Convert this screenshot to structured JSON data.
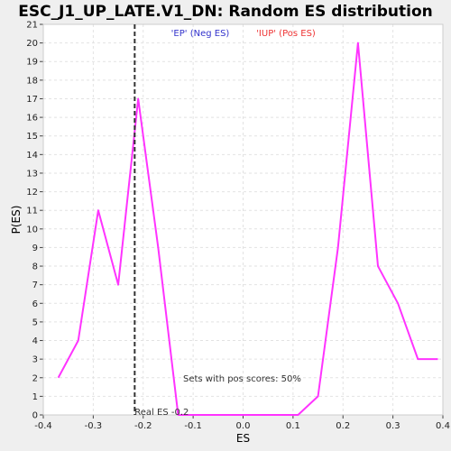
{
  "chart_data": {
    "type": "line",
    "title": "ESC_J1_UP_LATE.V1_DN: Random ES distribution",
    "xlabel": "ES",
    "ylabel": "P(ES)",
    "xlim": [
      -0.4,
      0.4
    ],
    "ylim": [
      0,
      21
    ],
    "xticks": [
      "-0.4",
      "-0.3",
      "-0.2",
      "-0.1",
      "0.0",
      "0.1",
      "0.2",
      "0.3",
      "0.4"
    ],
    "yticks": [
      "0",
      "1",
      "2",
      "3",
      "4",
      "5",
      "6",
      "7",
      "8",
      "9",
      "10",
      "11",
      "12",
      "13",
      "14",
      "15",
      "16",
      "17",
      "18",
      "19",
      "20",
      "21"
    ],
    "grid": true,
    "legend": [
      {
        "label": "'EP' (Neg ES)",
        "color": "#3333cc"
      },
      {
        "label": "'IUP' (Pos ES)",
        "color": "#ee3333"
      }
    ],
    "series": [
      {
        "color": "#ff33ff",
        "x": [
          -0.37,
          -0.33,
          -0.29,
          -0.25,
          -0.21,
          -0.17,
          -0.13,
          -0.09,
          -0.05,
          -0.01,
          0.03,
          0.07,
          0.11,
          0.15,
          0.19,
          0.23,
          0.27,
          0.31,
          0.35,
          0.39
        ],
        "y": [
          2,
          4,
          11,
          7,
          17,
          9,
          0,
          0,
          0,
          0,
          0,
          0,
          0,
          1,
          9,
          20,
          8,
          6,
          3,
          3
        ]
      }
    ],
    "real_es": {
      "value": -0.217,
      "label": "Real ES -0.2"
    },
    "annotation": "Sets with pos scores: 50%"
  }
}
